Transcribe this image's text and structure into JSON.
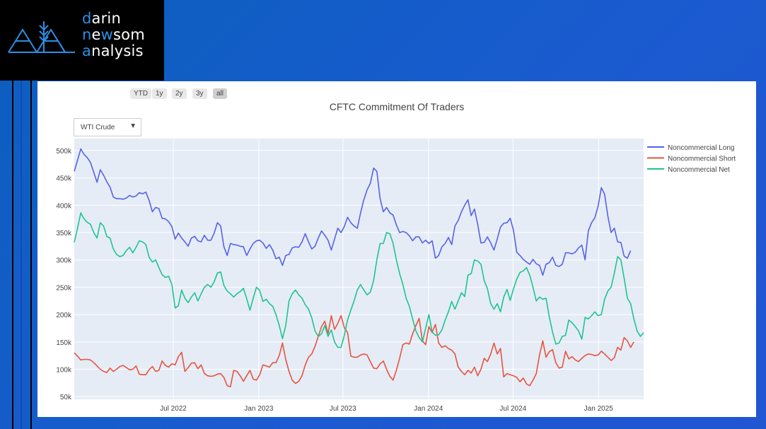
{
  "brand": {
    "line1_hl": "d",
    "line1_rest": "arin",
    "line2_a": "n",
    "line2_b": "e",
    "line2_c": "w",
    "line2_d": "som",
    "line3_hl": "a",
    "line3_rest": "nalysis"
  },
  "range_selector": [
    "YTD",
    "1y",
    "2y",
    "3y",
    "all"
  ],
  "dropdown": {
    "selected": "WTI Crude"
  },
  "colors": {
    "long": "#5563e8",
    "short": "#e8533f",
    "net": "#1fc48e",
    "plot_bg": "#e5ecf6"
  },
  "chart_data": {
    "type": "line",
    "title": "CFTC Commitment Of Traders",
    "x_start": "2021-11-30",
    "x_step_days": 7,
    "x_range": [
      "2021-11-30",
      "2025-04-08"
    ],
    "ylim": [
      45000,
      522000
    ],
    "ytick_labels": [
      "50k",
      "100k",
      "150k",
      "200k",
      "250k",
      "300k",
      "350k",
      "400k",
      "450k",
      "500k"
    ],
    "xtick_labels": [
      "Jul 2022",
      "Jan 2023",
      "Jul 2023",
      "Jan 2024",
      "Jul 2024",
      "Jan 2025"
    ],
    "legend_position": "top-right",
    "grid": true,
    "series": [
      {
        "name": "Noncommercial Long",
        "color": "#5563e8",
        "values": [
          462000,
          482000,
          503000,
          493000,
          487000,
          478000,
          460000,
          442000,
          465000,
          455000,
          443000,
          433000,
          415000,
          412000,
          412000,
          411000,
          413000,
          418000,
          415000,
          417000,
          423000,
          421000,
          424000,
          409000,
          388000,
          396000,
          394000,
          376000,
          375000,
          370000,
          361000,
          338000,
          349000,
          340000,
          333000,
          325000,
          340000,
          343000,
          335000,
          333000,
          345000,
          336000,
          336000,
          349000,
          368000,
          362000,
          324000,
          308000,
          330000,
          328000,
          327000,
          325000,
          324000,
          308000,
          320000,
          330000,
          335000,
          336000,
          331000,
          321000,
          328000,
          318000,
          302000,
          305000,
          290000,
          308000,
          310000,
          322000,
          324000,
          323000,
          333000,
          348000,
          333000,
          320000,
          325000,
          340000,
          353000,
          345000,
          336000,
          318000,
          338000,
          358000,
          350000,
          361000,
          378000,
          368000,
          362000,
          358000,
          386000,
          410000,
          428000,
          440000,
          468000,
          462000,
          412000,
          388000,
          396000,
          386000,
          382000,
          364000,
          350000,
          352000,
          350000,
          344000,
          335000,
          342000,
          342000,
          331000,
          336000,
          330000,
          335000,
          303000,
          308000,
          324000,
          330000,
          341000,
          328000,
          362000,
          372000,
          388000,
          400000,
          410000,
          381000,
          393000,
          365000,
          331000,
          332000,
          342000,
          331000,
          318000,
          338000,
          360000,
          367000,
          368000,
          376000,
          354000,
          314000,
          308000,
          301000,
          296000,
          292000,
          301000,
          293000,
          290000,
          272000,
          292000,
          295000,
          305000,
          290000,
          288000,
          292000,
          313000,
          313000,
          311000,
          314000,
          322000,
          327000,
          300000,
          353000,
          368000,
          377000,
          398000,
          432000,
          420000,
          380000,
          350000,
          358000,
          333000,
          332000,
          307000,
          303000,
          317000
        ]
      },
      {
        "name": "Noncommercial Short",
        "color": "#e8533f",
        "values": [
          130000,
          124000,
          117000,
          118000,
          118000,
          117000,
          112000,
          106000,
          100000,
          96000,
          94000,
          102000,
          96000,
          100000,
          105000,
          107000,
          103000,
          99000,
          100000,
          106000,
          91000,
          90000,
          90000,
          99000,
          105000,
          96000,
          98000,
          115000,
          107000,
          104000,
          110000,
          108000,
          123000,
          131000,
          96000,
          103000,
          111000,
          112000,
          101000,
          108000,
          92000,
          88000,
          87000,
          88000,
          91000,
          92000,
          85000,
          70000,
          68000,
          98000,
          96000,
          88000,
          78000,
          88000,
          98000,
          82000,
          80000,
          90000,
          108000,
          106000,
          104000,
          112000,
          112000,
          125000,
          148000,
          118000,
          96000,
          80000,
          74000,
          78000,
          88000,
          108000,
          122000,
          128000,
          142000,
          160000,
          178000,
          188000,
          165000,
          198000,
          173000,
          184000,
          198000,
          176000,
          167000,
          124000,
          122000,
          122000,
          126000,
          128000,
          126000,
          114000,
          102000,
          101000,
          110000,
          115000,
          100000,
          87000,
          80000,
          98000,
          120000,
          145000,
          148000,
          146000,
          165000,
          180000,
          193000,
          152000,
          145000,
          178000,
          167000,
          182000,
          148000,
          140000,
          143000,
          138000,
          135000,
          128000,
          104000,
          96000,
          90000,
          98000,
          93000,
          104000,
          88000,
          100000,
          120000,
          114000,
          128000,
          148000,
          128000,
          138000,
          86000,
          92000,
          90000,
          88000,
          85000,
          77000,
          84000,
          73000,
          70000,
          80000,
          92000,
          126000,
          152000,
          122000,
          132000,
          136000,
          112000,
          102000,
          104000,
          133000,
          119000,
          123000,
          117000,
          114000,
          120000,
          125000,
          128000,
          127000,
          125000,
          126000,
          133000,
          128000,
          122000,
          116000,
          121000,
          140000,
          135000,
          158000,
          152000,
          140000,
          150000
        ]
      },
      {
        "name": "Noncommercial Net",
        "color": "#1fc48e",
        "values": [
          332000,
          358000,
          386000,
          375000,
          369000,
          365000,
          350000,
          340000,
          368000,
          362000,
          343000,
          340000,
          320000,
          310000,
          306000,
          308000,
          317000,
          323000,
          313000,
          323000,
          335000,
          333000,
          328000,
          305000,
          296000,
          300000,
          286000,
          273000,
          268000,
          270000,
          255000,
          212000,
          216000,
          245000,
          230000,
          222000,
          232000,
          240000,
          225000,
          238000,
          250000,
          255000,
          250000,
          260000,
          276000,
          278000,
          253000,
          243000,
          238000,
          232000,
          238000,
          242000,
          248000,
          229000,
          208000,
          230000,
          250000,
          244000,
          224000,
          228000,
          220000,
          215000,
          200000,
          180000,
          156000,
          180000,
          225000,
          238000,
          245000,
          236000,
          230000,
          218000,
          210000,
          194000,
          170000,
          160000,
          165000,
          180000,
          160000,
          172000,
          150000,
          140000,
          140000,
          162000,
          190000,
          208000,
          225000,
          245000,
          255000,
          245000,
          236000,
          241000,
          262000,
          300000,
          330000,
          330000,
          350000,
          348000,
          330000,
          300000,
          275000,
          255000,
          230000,
          215000,
          192000,
          170000,
          158000,
          150000,
          175000,
          200000,
          168000,
          162000,
          163000,
          172000,
          190000,
          205000,
          224000,
          210000,
          225000,
          240000,
          233000,
          272000,
          275000,
          300000,
          298000,
          292000,
          262000,
          247000,
          220000,
          210000,
          220000,
          205000,
          232000,
          246000,
          226000,
          247000,
          265000,
          277000,
          280000,
          286000,
          272000,
          250000,
          225000,
          232000,
          228000,
          230000,
          196000,
          168000,
          146000,
          148000,
          160000,
          162000,
          190000,
          185000,
          178000,
          170000,
          155000,
          195000,
          192000,
          198000,
          205000,
          198000,
          200000,
          228000,
          243000,
          250000,
          276000,
          306000,
          300000,
          267000,
          230000,
          220000,
          192000,
          170000,
          160000,
          167000
        ]
      }
    ]
  }
}
